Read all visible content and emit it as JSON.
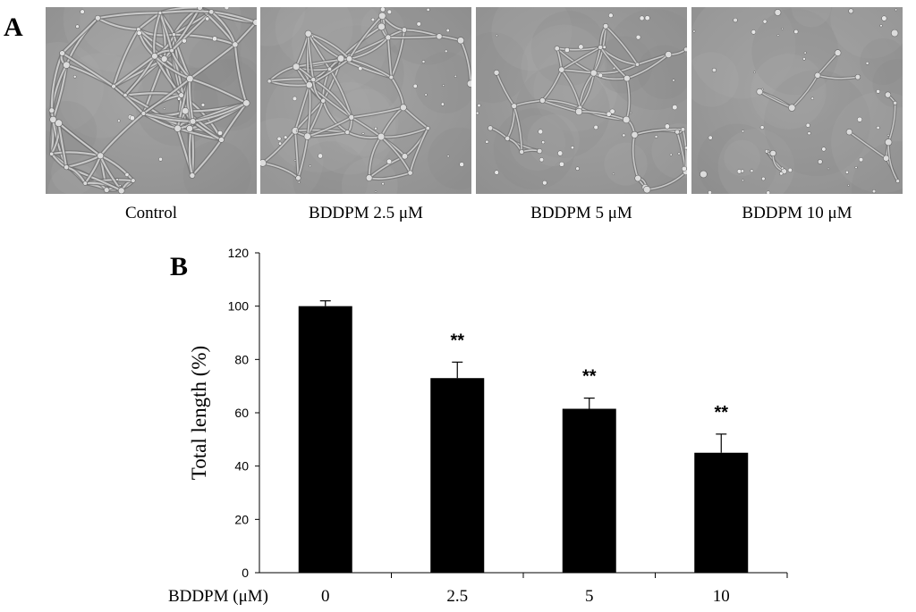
{
  "panels": {
    "a_label": "A",
    "b_label": "B"
  },
  "micrographs": [
    {
      "caption": "Control",
      "network_density": 1.0
    },
    {
      "caption": "BDDPM 2.5 μM",
      "network_density": 0.73
    },
    {
      "caption": "BDDPM 5 μM",
      "network_density": 0.61
    },
    {
      "caption": "BDDPM 10 μM",
      "network_density": 0.45
    }
  ],
  "chart_data": {
    "type": "bar",
    "categories": [
      "0",
      "2.5",
      "5",
      "10"
    ],
    "values": [
      100,
      73,
      61.5,
      45
    ],
    "errors": [
      2,
      6,
      4,
      7
    ],
    "significance": [
      "",
      "**",
      "**",
      "**"
    ],
    "xlabel": "BDDPM (μM)",
    "ylabel": "Total length (%)",
    "ylim": [
      0,
      120
    ],
    "yticks": [
      0,
      20,
      40,
      60,
      80,
      100,
      120
    ],
    "bar_color": "#000000",
    "grid": false
  }
}
